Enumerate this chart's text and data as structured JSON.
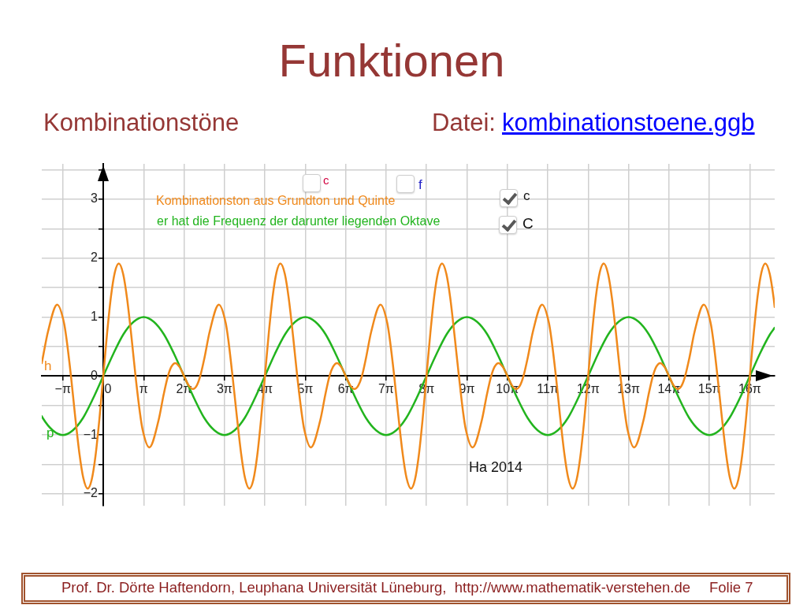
{
  "chart_data": {
    "type": "line",
    "title": "Funktionen",
    "subtitle": "Kombinationstöne",
    "annotations": [
      "Datei:",
      "kombinationstoene.ggb",
      "c",
      "f",
      "Kombinationston aus Grundton und Quinte",
      "c",
      "er hat die Frequenz der darunter liegenden Oktave",
      "C",
      "Ha 2014",
      "Prof. Dr. Dörte Haftendorn, Leuphana Universität Lüneburg,  http://www.mathematik-verstehen.de",
      "Folie 7"
    ],
    "series": [
      {
        "name": "h",
        "color": "#f0891b",
        "x": [
          -4.78,
          -4.7,
          -4.3,
          -3.58,
          -3.05,
          -2.85,
          -2.51,
          -2.2,
          -1.85,
          -1.55,
          -1.21,
          -0.9,
          -0.6,
          -0.3,
          0,
          0.3,
          0.6,
          0.9,
          1.21,
          1.55,
          1.85,
          2.2,
          2.51,
          2.85,
          3.05,
          3.58,
          4.3,
          4.7,
          5.03,
          5.3,
          5.6,
          5.95,
          6.28,
          6.62,
          6.97,
          7.27,
          7.54,
          7.87,
          8.27,
          8.99,
          9.52,
          9.72,
          10.05,
          10.37,
          10.72,
          11.02,
          11.36,
          11.67,
          11.97,
          12.27,
          12.57,
          12.87,
          13.17,
          13.47,
          13.77,
          14.12,
          14.42,
          14.77,
          15.08,
          15.42,
          15.62,
          16.14,
          16.87,
          17.27,
          17.59,
          17.87,
          18.17,
          18.52,
          18.85,
          19.18,
          19.53,
          19.83,
          20.11,
          20.43,
          20.83,
          21.56,
          22.08,
          22.28,
          22.62,
          22.93,
          23.28,
          23.58,
          23.93,
          24.23,
          24.53,
          24.83,
          25.13,
          25.43,
          25.73,
          26.03,
          26.34,
          26.68,
          26.98,
          27.33,
          27.65,
          27.98,
          28.18,
          28.71,
          29.43,
          29.83,
          30.16,
          30.43,
          30.73,
          31.08,
          31.42,
          31.75,
          32.1,
          32.4,
          32.67,
          33.0,
          33.4,
          34.12,
          34.65,
          34.85,
          35.19,
          35.5,
          35.85,
          36.15,
          36.49,
          36.8,
          37.1,
          37.4,
          37.7,
          38.0,
          38.3,
          38.6,
          38.91,
          39.25,
          39.55,
          39.9,
          40.21,
          40.55,
          40.75,
          41.27,
          42.0,
          42.4,
          42.73,
          43.0,
          43.3,
          43.65,
          43.98,
          44.32,
          44.67,
          44.97,
          45.24,
          45.57,
          45.97,
          46.69,
          47.22,
          47.42,
          47.75,
          48.07,
          48.42,
          48.72,
          49.06,
          49.37,
          49.67,
          49.97,
          50.27,
          50.57,
          50.87,
          51.17,
          51.47,
          51.82,
          52.12,
          52.2
        ],
        "values": [
          0.22,
          0.31,
          0.75,
          1.21,
          0.9,
          0.62,
          0,
          -0.65,
          -1.32,
          -1.73,
          -1.91,
          -1.76,
          -1.35,
          -0.73,
          0,
          0.73,
          1.35,
          1.76,
          1.91,
          1.73,
          1.32,
          0.65,
          0,
          -0.62,
          -0.9,
          -1.21,
          -0.75,
          -0.31,
          0,
          0.16,
          0.22,
          0.15,
          0,
          -0.15,
          -0.22,
          -0.16,
          0,
          0.31,
          0.75,
          1.21,
          0.9,
          0.62,
          0,
          -0.65,
          -1.32,
          -1.73,
          -1.91,
          -1.76,
          -1.35,
          -0.73,
          0,
          0.73,
          1.35,
          1.76,
          1.91,
          1.73,
          1.32,
          0.65,
          0,
          -0.62,
          -0.9,
          -1.21,
          -0.75,
          -0.31,
          0,
          0.16,
          0.22,
          0.15,
          0,
          -0.15,
          -0.22,
          -0.16,
          0,
          0.31,
          0.75,
          1.21,
          0.9,
          0.62,
          0,
          -0.65,
          -1.32,
          -1.73,
          -1.91,
          -1.76,
          -1.35,
          -0.73,
          0,
          0.73,
          1.35,
          1.76,
          1.91,
          1.73,
          1.32,
          0.65,
          0,
          -0.62,
          -0.9,
          -1.21,
          -0.75,
          -0.31,
          0,
          0.16,
          0.22,
          0.15,
          0,
          -0.15,
          -0.22,
          -0.16,
          0,
          0.31,
          0.75,
          1.21,
          0.9,
          0.62,
          0,
          -0.65,
          -1.32,
          -1.73,
          -1.91,
          -1.76,
          -1.35,
          -0.73,
          0,
          0.73,
          1.35,
          1.76,
          1.91,
          1.73,
          1.32,
          0.65,
          0,
          -0.62,
          -0.9,
          -1.21,
          -0.75,
          -0.31,
          0,
          0.16,
          0.22,
          0.15,
          0,
          -0.15,
          -0.22,
          -0.16,
          0,
          0.31,
          0.75,
          1.21,
          0.9,
          0.62,
          0,
          -0.65,
          -1.32,
          -1.73,
          -1.91,
          -1.76,
          -1.35,
          -0.73,
          0,
          0.73,
          1.35,
          1.76,
          1.91,
          1.73,
          1.32,
          1.17
        ]
      },
      {
        "name": "p",
        "color": "#22b41e",
        "x": [
          -4.78,
          -4.71,
          -3.93,
          -3.14,
          -2.36,
          -1.57,
          -0.79,
          0,
          0.79,
          1.57,
          2.36,
          3.14,
          3.93,
          4.71,
          5.5,
          6.28,
          7.07,
          7.85,
          8.64,
          9.42,
          10.21,
          11.0,
          11.78,
          12.57,
          13.35,
          14.14,
          14.92,
          15.71,
          16.49,
          17.28,
          18.06,
          18.85,
          19.63,
          20.42,
          21.21,
          21.99,
          22.78,
          23.56,
          24.35,
          25.13,
          25.92,
          26.7,
          27.49,
          28.27,
          29.06,
          29.85,
          30.63,
          31.42,
          32.2,
          32.99,
          33.77,
          34.56,
          35.34,
          36.13,
          36.91,
          37.7,
          38.48,
          39.27,
          40.06,
          40.84,
          41.63,
          42.41,
          43.2,
          43.98,
          44.77,
          45.55,
          46.34,
          47.12,
          47.91,
          48.69,
          49.48,
          50.27,
          51.05,
          51.84,
          52.2
        ],
        "values": [
          -0.68,
          -0.71,
          -0.92,
          -1,
          -0.92,
          -0.71,
          -0.38,
          0,
          0.38,
          0.71,
          0.92,
          1,
          0.92,
          0.71,
          0.38,
          0,
          -0.38,
          -0.71,
          -0.92,
          -1,
          -0.92,
          -0.71,
          -0.38,
          0,
          0.38,
          0.71,
          0.92,
          1,
          0.92,
          0.71,
          0.38,
          0,
          -0.38,
          -0.71,
          -0.92,
          -1,
          -0.92,
          -0.71,
          -0.38,
          0,
          0.38,
          0.71,
          0.92,
          1,
          0.92,
          0.71,
          0.38,
          0,
          -0.38,
          -0.71,
          -0.92,
          -1,
          -0.92,
          -0.71,
          -0.38,
          0,
          0.38,
          0.71,
          0.92,
          1,
          0.92,
          0.71,
          0.38,
          0,
          -0.38,
          -0.71,
          -0.92,
          -1,
          -0.92,
          -0.71,
          -0.38,
          0,
          0.38,
          0.71,
          0.82
        ]
      }
    ],
    "xlim": [
      -4.78,
      52.2
    ],
    "ylim": [
      -2.2,
      3.6
    ],
    "xticks": [
      {
        "value": -3.1416,
        "label": "−π"
      },
      0,
      {
        "value": 3.1416,
        "label": "π"
      },
      {
        "value": 6.2832,
        "label": "2π"
      },
      {
        "value": 9.4248,
        "label": "3π"
      },
      {
        "value": 12.5664,
        "label": "4π"
      },
      {
        "value": 15.708,
        "label": "5π"
      },
      {
        "value": 18.8496,
        "label": "6π"
      },
      {
        "value": 21.9911,
        "label": "7π"
      },
      {
        "value": 25.1327,
        "label": "8π"
      },
      {
        "value": 28.2743,
        "label": "9π"
      },
      {
        "value": 31.4159,
        "label": "10π"
      },
      {
        "value": 34.5575,
        "label": "11π"
      },
      {
        "value": 37.6991,
        "label": "12π"
      },
      {
        "value": 40.8407,
        "label": "13π"
      },
      {
        "value": 43.9823,
        "label": "14π"
      },
      {
        "value": 47.1239,
        "label": "15π"
      },
      {
        "value": 50.2655,
        "label": "16π"
      }
    ],
    "yticks": [
      {
        "value": -2,
        "label": "−2"
      },
      {
        "value": -1.5,
        "label": null
      },
      {
        "value": -1,
        "label": "−1"
      },
      {
        "value": -0.5,
        "label": null
      },
      0,
      {
        "value": 0.5,
        "label": null
      },
      1,
      {
        "value": 1.5,
        "label": null
      },
      2,
      {
        "value": 2.5,
        "label": null
      },
      3,
      {
        "value": 3.5,
        "label": null
      }
    ],
    "grid": true
  }
}
